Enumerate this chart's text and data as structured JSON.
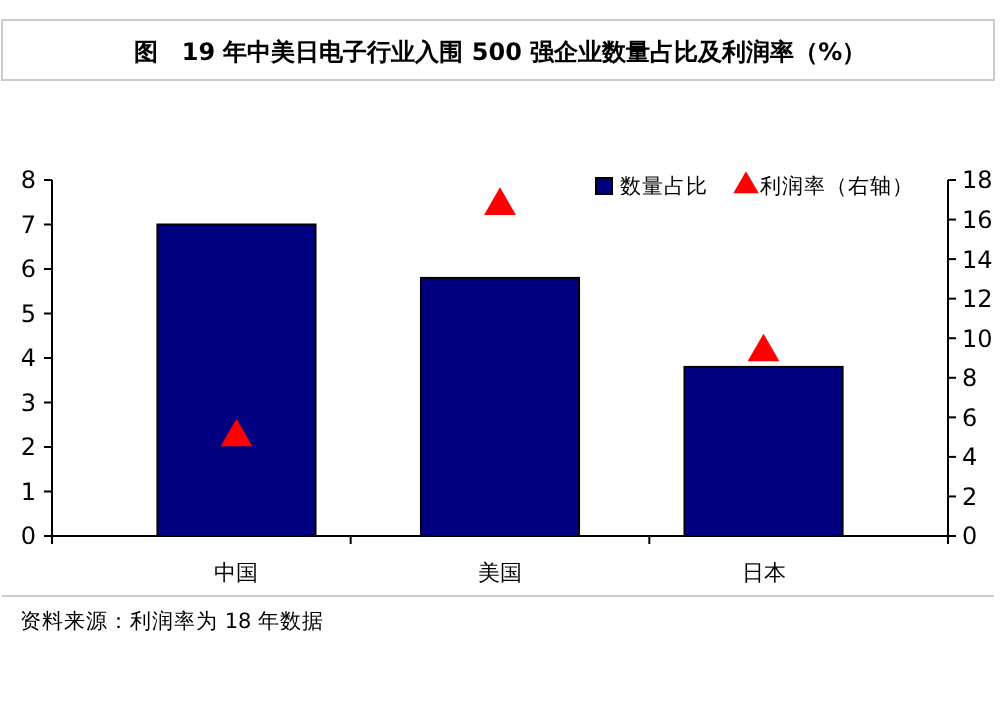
{
  "chart_data": {
    "type": "bar",
    "title": "图　19 年中美日电子行业入围 500 强企业数量占比及利润率（%）",
    "categories": [
      "中国",
      "美国",
      "日本"
    ],
    "series": [
      {
        "name": "数量占比",
        "color": "#000080",
        "values": [
          7.0,
          5.8,
          3.8
        ]
      },
      {
        "name": "利润率（右轴）",
        "type": "scatter",
        "axis": "y2",
        "color": "#ff0000",
        "marker": "triangle",
        "values": [
          5.0,
          16.7,
          9.3
        ]
      }
    ],
    "ylim": [
      0,
      8
    ],
    "yticks": [
      0,
      1,
      2,
      3,
      4,
      5,
      6,
      7,
      8
    ],
    "y2lim": [
      0,
      18
    ],
    "y2ticks": [
      0,
      2,
      4,
      6,
      8,
      10,
      12,
      14,
      16,
      18
    ],
    "legend": "top right",
    "grid": false,
    "annotations": [
      "资料来源：利润率为 18 年数据"
    ]
  }
}
